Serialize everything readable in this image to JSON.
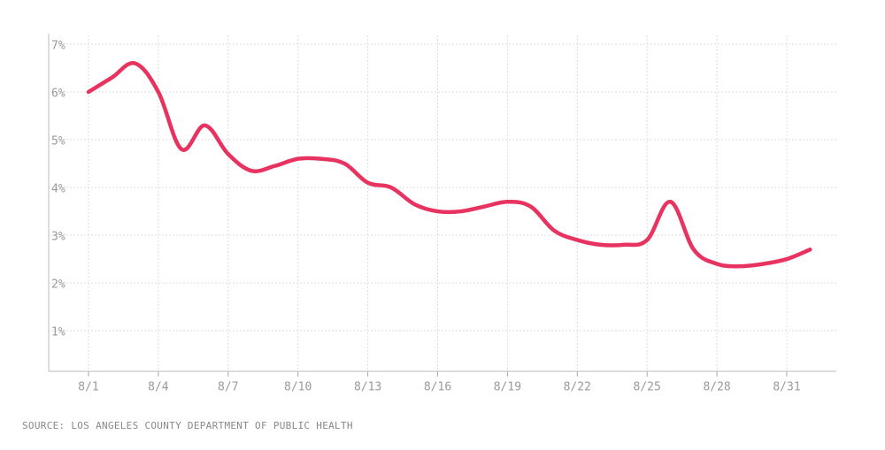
{
  "chart_data": {
    "type": "line",
    "categories": [
      "8/1",
      null,
      null,
      "8/4",
      null,
      null,
      "8/7",
      null,
      null,
      "8/10",
      null,
      null,
      "8/13",
      null,
      null,
      "8/16",
      null,
      null,
      "8/19",
      null,
      null,
      "8/22",
      null,
      null,
      "8/25",
      null,
      null,
      "8/28",
      null,
      null,
      "8/31",
      null
    ],
    "series": [
      {
        "color": "#e8325f",
        "values": [
          6.0,
          6.3,
          6.6,
          6.0,
          4.8,
          5.3,
          4.7,
          4.35,
          4.45,
          4.6,
          4.6,
          4.5,
          4.1,
          4.0,
          3.65,
          3.5,
          3.5,
          3.6,
          3.7,
          3.6,
          3.1,
          2.9,
          2.8,
          2.8,
          2.9,
          3.7,
          2.7,
          2.4,
          2.35,
          2.4,
          2.5,
          2.7
        ]
      }
    ],
    "ylim": [
      0.15,
      7
    ],
    "yticks": [
      {
        "value": 1,
        "label": "1%"
      },
      {
        "value": 2,
        "label": "2%"
      },
      {
        "value": 3,
        "label": "3%"
      },
      {
        "value": 4,
        "label": "4%"
      },
      {
        "value": 5,
        "label": "5%"
      },
      {
        "value": 6,
        "label": "6%"
      },
      {
        "value": 7,
        "label": "7%"
      }
    ],
    "grid": true,
    "source": "SOURCE: LOS ANGELES COUNTY DEPARTMENT OF PUBLIC HEALTH"
  }
}
